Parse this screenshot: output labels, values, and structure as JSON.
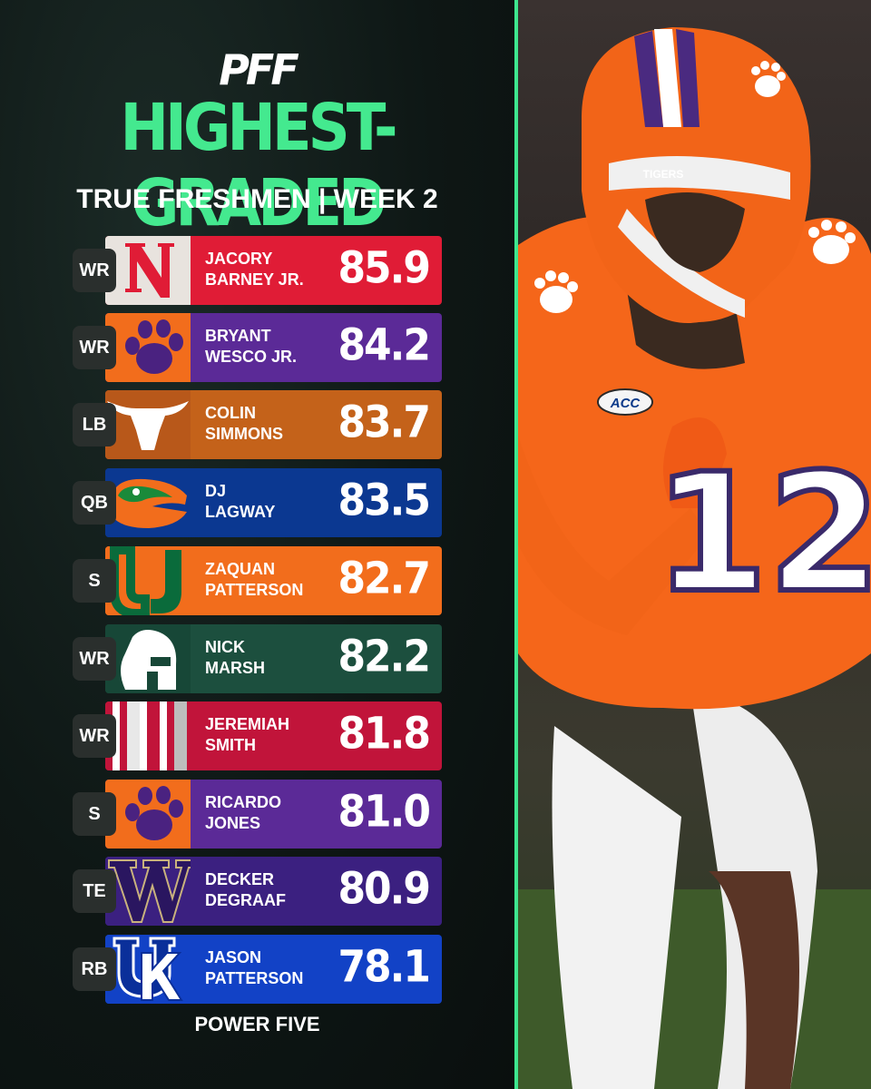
{
  "header": {
    "logo": "PFF",
    "title": "HIGHEST-GRADED",
    "subtitle": "TRUE FRESHMEN | WEEK 2"
  },
  "rows": [
    {
      "position": "WR",
      "first": "JACORY",
      "last": "BARNEY JR.",
      "grade": "85.9",
      "color": "#e01c36",
      "logo": "nebraska-n-icon"
    },
    {
      "position": "WR",
      "first": "BRYANT",
      "last": "WESCO JR.",
      "grade": "84.2",
      "color": "#5b2a97",
      "logo": "tiger-paw-icon"
    },
    {
      "position": "LB",
      "first": "COLIN",
      "last": "SIMMONS",
      "grade": "83.7",
      "color": "#c4621a",
      "logo": "longhorn-icon"
    },
    {
      "position": "QB",
      "first": "DJ",
      "last": "LAGWAY",
      "grade": "83.5",
      "color": "#0b3891",
      "logo": "gator-icon"
    },
    {
      "position": "S",
      "first": "ZAQUAN",
      "last": "PATTERSON",
      "grade": "82.7",
      "color": "#f26d1c",
      "logo": "split-u-icon"
    },
    {
      "position": "WR",
      "first": "NICK",
      "last": "MARSH",
      "grade": "82.2",
      "color": "#1c4f3e",
      "logo": "spartan-helmet-icon"
    },
    {
      "position": "WR",
      "first": "JEREMIAH",
      "last": "SMITH",
      "grade": "81.8",
      "color": "#c1143a",
      "logo": "helmet-stripe-icon"
    },
    {
      "position": "S",
      "first": "RICARDO",
      "last": "JONES",
      "grade": "81.0",
      "color": "#5b2a97",
      "logo": "tiger-paw-icon"
    },
    {
      "position": "TE",
      "first": "DECKER",
      "last": "DEGRAAF",
      "grade": "80.9",
      "color": "#3b2080",
      "logo": "w-logo-icon"
    },
    {
      "position": "RB",
      "first": "JASON",
      "last": "PATTERSON",
      "grade": "78.1",
      "color": "#1242c6",
      "logo": "uk-logo-icon"
    }
  ],
  "footer": "POWER FIVE",
  "photo": {
    "helmet_text": "TIGERS",
    "jersey_number": "12",
    "patch_text": "ACC"
  }
}
